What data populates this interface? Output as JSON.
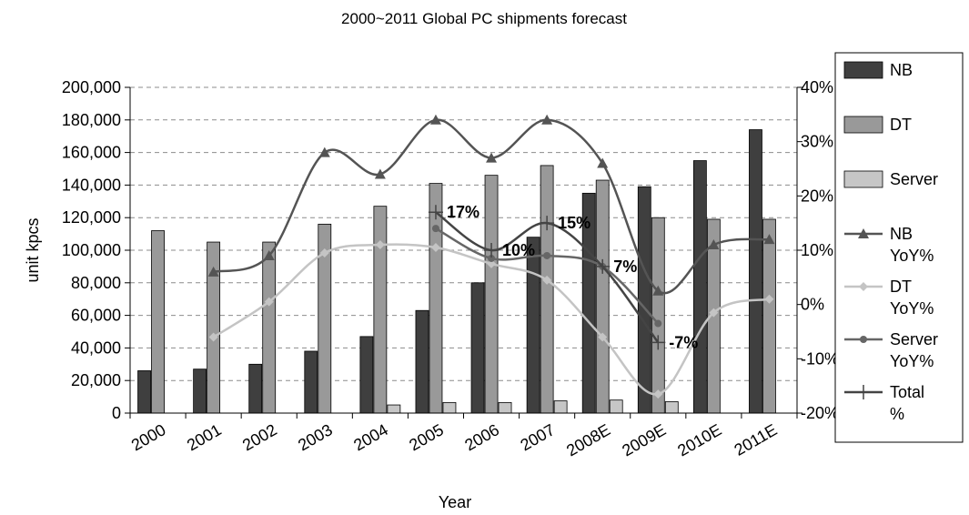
{
  "chart_data": {
    "type": "bar",
    "title": "2000~2011 Global PC shipments forecast",
    "xlabel": "Year",
    "ylabel": "unit kpcs",
    "categories": [
      "2000",
      "2001",
      "2002",
      "2003",
      "2004",
      "2005",
      "2006",
      "2007",
      "2008E",
      "2009E",
      "2010E",
      "2011E"
    ],
    "ylim": [
      0,
      200000
    ],
    "y_ticks": [
      "0",
      "20,000",
      "40,000",
      "60,000",
      "80,000",
      "100,000",
      "120,000",
      "140,000",
      "160,000",
      "180,000",
      "200,000"
    ],
    "y2lim": [
      -0.2,
      0.4
    ],
    "y2_ticks": [
      "-20%",
      "-10%",
      "0%",
      "10%",
      "20%",
      "30%",
      "40%"
    ],
    "grid": true,
    "legend_position": "right",
    "bar_series": [
      {
        "name": "NB",
        "color": "#3f3f3f",
        "values": [
          26000,
          27000,
          30000,
          38000,
          47000,
          63000,
          80000,
          108000,
          135000,
          139000,
          155000,
          174000
        ]
      },
      {
        "name": "DT",
        "color": "#999999",
        "values": [
          112000,
          105000,
          105000,
          116000,
          127000,
          141000,
          146000,
          152000,
          143000,
          120000,
          119000,
          119000
        ]
      },
      {
        "name": "Server",
        "color": "#c6c6c6",
        "values": [
          null,
          null,
          null,
          null,
          5000,
          6500,
          6500,
          7500,
          8000,
          7000,
          null,
          null
        ]
      }
    ],
    "line_series": [
      {
        "name": "NB YoY%",
        "color": "#545454",
        "marker": "triangle",
        "values": [
          null,
          0.06,
          0.09,
          0.28,
          0.24,
          0.34,
          0.27,
          0.34,
          0.26,
          0.025,
          0.11,
          0.12
        ]
      },
      {
        "name": "DT YoY%",
        "color": "#c4c4c4",
        "marker": "diamond",
        "values": [
          null,
          -0.06,
          0.005,
          0.095,
          0.11,
          0.105,
          0.075,
          0.045,
          -0.06,
          -0.165,
          -0.015,
          0.01
        ]
      },
      {
        "name": "Server YoY%",
        "color": "#666666",
        "marker": "circle",
        "values": [
          null,
          null,
          null,
          null,
          null,
          0.14,
          0.085,
          0.09,
          0.07,
          -0.035,
          null,
          null
        ]
      },
      {
        "name": "Total %",
        "color": "#444444",
        "marker": "plus",
        "values": [
          null,
          null,
          null,
          null,
          null,
          0.17,
          0.1,
          0.15,
          0.07,
          -0.07,
          null,
          null
        ]
      }
    ],
    "annotations": [
      {
        "text": "17%",
        "category": "2005",
        "y2": 0.17
      },
      {
        "text": "10%",
        "category": "2006",
        "y2": 0.1
      },
      {
        "text": "15%",
        "category": "2007",
        "y2": 0.15
      },
      {
        "text": "7%",
        "category": "2008E",
        "y2": 0.07
      },
      {
        "text": "-7%",
        "category": "2009E",
        "y2": -0.07
      }
    ]
  }
}
